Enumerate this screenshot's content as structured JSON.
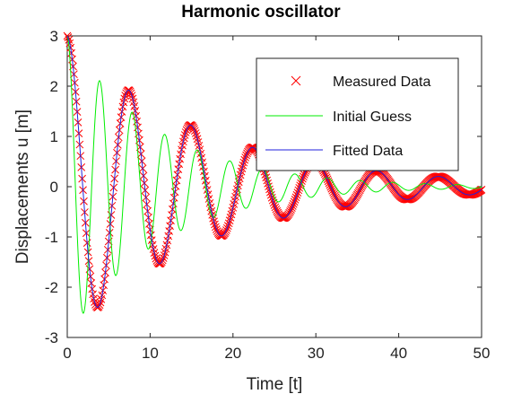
{
  "chart_data": {
    "type": "line",
    "title": "Harmonic oscillator",
    "xlabel": "Time [t]",
    "ylabel": "Displacements u [m]",
    "xlim": [
      0,
      50
    ],
    "ylim": [
      -3,
      3
    ],
    "xticks": [
      "0",
      "10",
      "20",
      "30",
      "40",
      "50"
    ],
    "yticks": [
      "-3",
      "-2",
      "-1",
      "0",
      "1",
      "2",
      "3"
    ],
    "grid": false,
    "legend_position": "top-right",
    "series": [
      {
        "name": "Measured Data",
        "kind": "scatter",
        "marker": "x",
        "color": "#ff0000",
        "model": {
          "amplitude": 3,
          "damping": 0.06,
          "angular_frequency": 0.84,
          "t_start": 0,
          "t_end": 50,
          "t_step": 0.1
        }
      },
      {
        "name": "Initial Guess",
        "kind": "line",
        "color": "#00ee00",
        "model": {
          "amplitude": 3,
          "damping": 0.09,
          "angular_frequency": 1.6,
          "t_start": 0,
          "t_end": 50,
          "t_step": 0.05
        }
      },
      {
        "name": "Fitted Data",
        "kind": "line",
        "color": "#2222dd",
        "model": {
          "amplitude": 3,
          "damping": 0.06,
          "angular_frequency": 0.84,
          "t_start": 0,
          "t_end": 50,
          "t_step": 0.05
        }
      }
    ]
  }
}
